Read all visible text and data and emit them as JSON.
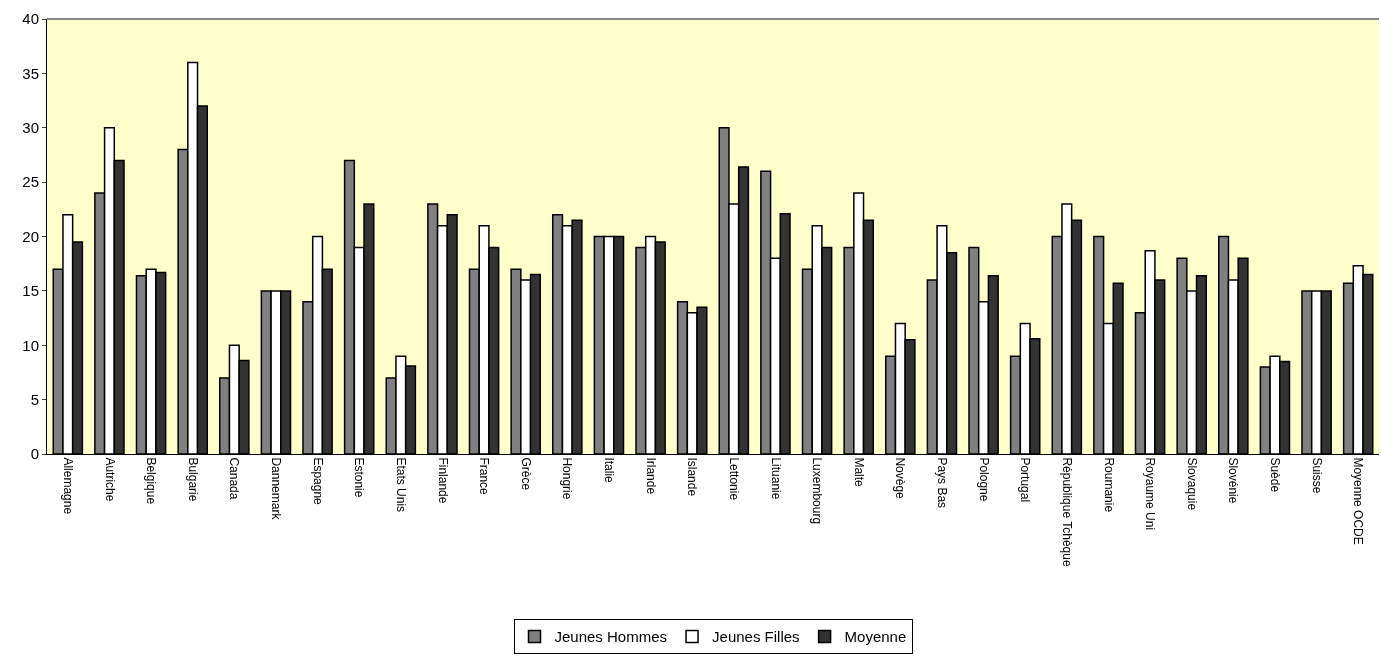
{
  "chart_data": {
    "type": "bar",
    "categories": [
      "Allemagne",
      "Autriche",
      "Belgique",
      "Bulgarie",
      "Canada",
      "Dannemark",
      "Espagne",
      "Estonie",
      "Etats Unis",
      "Finlande",
      "France",
      "Grèce",
      "Hongrie",
      "Italie",
      "Irlande",
      "Islande",
      "Lettonie",
      "Lituanie",
      "Luxembourg",
      "Malte",
      "Novège",
      "Pays Bas",
      "Pologne",
      "Portugal",
      "République Tchèque",
      "Roumanie",
      "Royaume Uni",
      "Slovaquie",
      "Slovénie",
      "Suède",
      "Suisse",
      "Moyenne OCDE"
    ],
    "series": [
      {
        "name": "Jeunes Hommes",
        "color": "#808080",
        "values": [
          17,
          24,
          16.4,
          28,
          7,
          15,
          14,
          27,
          7,
          23,
          17,
          17,
          22,
          20,
          19,
          14,
          30,
          26,
          17,
          19,
          9,
          16,
          19,
          9,
          20,
          20,
          13,
          18,
          20,
          8,
          15,
          15.7
        ]
      },
      {
        "name": "Jeunes Filles",
        "color": "#ffffff",
        "values": [
          22,
          30,
          17,
          36,
          10,
          15,
          20,
          19,
          9,
          21,
          21,
          16,
          21,
          20,
          20,
          13,
          23,
          18,
          21,
          24,
          12,
          21,
          14,
          12,
          23,
          12,
          18.7,
          15,
          16,
          9,
          15,
          17.3
        ]
      },
      {
        "name": "Moyenne",
        "color": "#333333",
        "values": [
          19.5,
          27,
          16.7,
          32,
          8.6,
          15,
          17,
          23,
          8.1,
          22,
          19,
          16.5,
          21.5,
          20,
          19.5,
          13.5,
          26.4,
          22.1,
          19,
          21.5,
          10.5,
          18.5,
          16.4,
          10.6,
          21.5,
          15.7,
          16,
          16.4,
          18,
          8.5,
          15,
          16.5
        ]
      }
    ],
    "ylim": [
      0,
      40
    ],
    "yticks": [
      0,
      5,
      10,
      15,
      20,
      25,
      30,
      35,
      40
    ],
    "grid": false,
    "legend": "bottom"
  }
}
